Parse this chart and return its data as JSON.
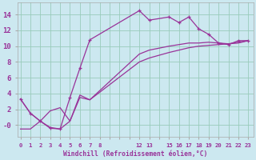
{
  "xlabel": "Windchill (Refroidissement éolien,°C)",
  "bg_color": "#cce8f0",
  "grid_color": "#99ccbb",
  "line_color": "#993399",
  "series1_x": [
    0,
    1,
    2,
    3,
    4,
    5,
    6,
    7,
    12,
    13,
    15,
    16,
    17,
    18,
    19,
    20,
    21,
    22,
    23
  ],
  "series1_y": [
    3.3,
    1.5,
    0.5,
    -0.4,
    -0.5,
    3.5,
    7.2,
    10.8,
    14.5,
    13.3,
    13.7,
    13.0,
    13.7,
    12.2,
    11.5,
    10.4,
    10.2,
    10.7,
    10.7
  ],
  "series2_x": [
    0,
    1,
    2,
    3,
    4,
    5,
    6,
    7,
    12,
    13,
    15,
    16,
    17,
    18,
    19,
    20,
    21,
    22,
    23
  ],
  "series2_y": [
    3.3,
    1.5,
    0.5,
    1.8,
    2.2,
    0.5,
    3.8,
    3.2,
    9.0,
    9.5,
    10.0,
    10.2,
    10.4,
    10.4,
    10.5,
    10.4,
    10.3,
    10.5,
    10.7
  ],
  "series3_x": [
    0,
    1,
    2,
    3,
    4,
    5,
    6,
    7,
    12,
    13,
    15,
    16,
    17,
    18,
    19,
    20,
    21,
    22,
    23
  ],
  "series3_y": [
    -0.5,
    -0.5,
    0.5,
    -0.3,
    -0.5,
    0.5,
    3.5,
    3.2,
    8.0,
    8.5,
    9.2,
    9.5,
    9.8,
    10.0,
    10.1,
    10.2,
    10.3,
    10.4,
    10.7
  ],
  "yticks": [
    0,
    2,
    4,
    6,
    8,
    10,
    12,
    14
  ],
  "ytick_labels": [
    "-0",
    "2",
    "4",
    "6",
    "8",
    "10",
    "12",
    "14"
  ],
  "xtick_positions": [
    0,
    1,
    2,
    3,
    4,
    5,
    6,
    7,
    8,
    9,
    10,
    11,
    12,
    13,
    14,
    15,
    16,
    17,
    18,
    19,
    20,
    21,
    22,
    23
  ],
  "xtick_labels": [
    "0",
    "1",
    "2",
    "3",
    "4",
    "5",
    "6",
    "7",
    "8",
    "",
    "",
    "",
    "12",
    "13",
    "",
    "15",
    "16",
    "17",
    "18",
    "19",
    "20",
    "21",
    "22",
    "23"
  ],
  "ylim": [
    -1.5,
    15.5
  ],
  "xlim": [
    -0.3,
    23.5
  ]
}
